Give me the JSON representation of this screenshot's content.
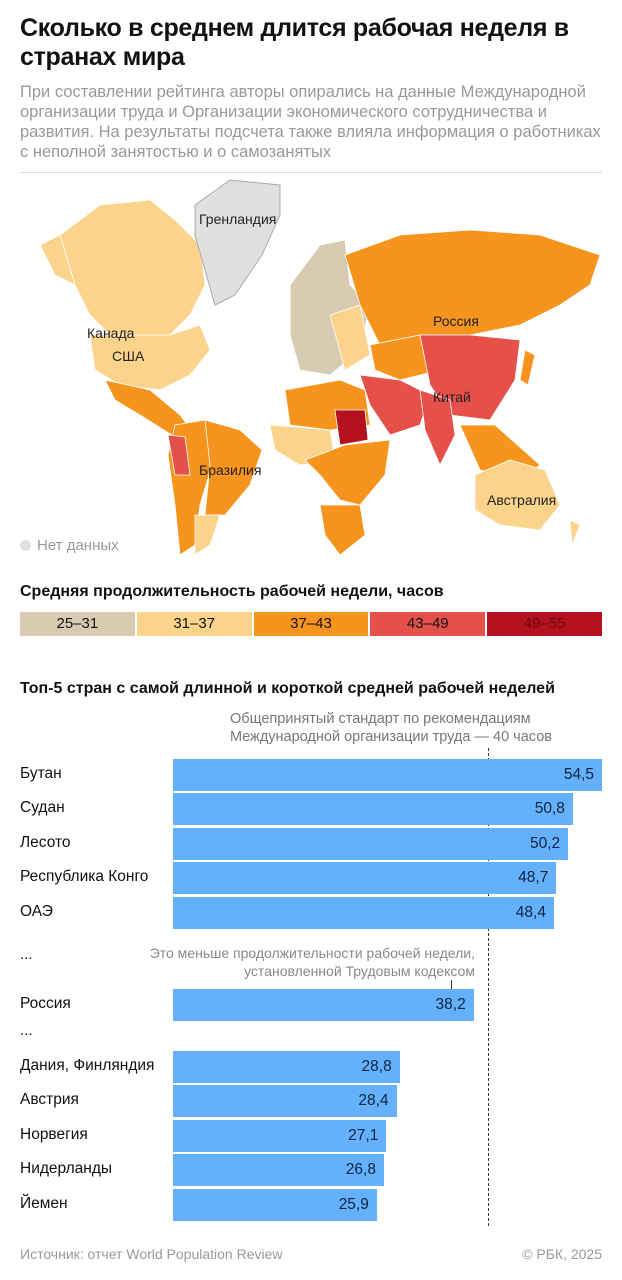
{
  "title": "Сколько в среднем длится рабочая неделя в странах мира",
  "subtitle": "При составлении рейтинга авторы опирались на данные Международной организации труда и Организации экономического сотрудничества и развития. На результаты подсчета также влияла информация о работниках с неполной занятостью и о самозанятых",
  "map": {
    "labels": {
      "greenland": "Гренландия",
      "canada": "Канада",
      "usa": "США",
      "russia": "Россия",
      "china": "Китай",
      "brazil": "Бразилия",
      "australia": "Австралия"
    },
    "no_data": "Нет данных",
    "no_data_color": "#e0e0e0"
  },
  "legend": {
    "title": "Средняя продолжительность рабочей недели, часов",
    "bins": [
      {
        "label": "25–31",
        "color": "#d8cbb1"
      },
      {
        "label": "31–37",
        "color": "#fbd38b"
      },
      {
        "label": "37–43",
        "color": "#f7941e"
      },
      {
        "label": "43–49",
        "color": "#e5504b"
      },
      {
        "label": "49–55",
        "color": "#b4101d"
      }
    ]
  },
  "chart_data": {
    "type": "bar",
    "orientation": "horizontal",
    "title": "Топ-5 стран с самой длинной и короткой средней рабочей неделей",
    "categories": [
      "Бутан",
      "Судан",
      "Лесото",
      "Республика Конго",
      "ОАЭ",
      "Россия",
      "Дания, Финляндия",
      "Австрия",
      "Норвегия",
      "Нидерланды",
      "Йемен"
    ],
    "values": [
      54.5,
      50.8,
      50.2,
      48.7,
      48.4,
      38.2,
      28.8,
      28.4,
      27.1,
      26.8,
      25.9
    ],
    "value_labels": [
      "54,5",
      "50,8",
      "50,2",
      "48,7",
      "48,4",
      "38,2",
      "28,8",
      "28,4",
      "27,1",
      "26,8",
      "25,9"
    ],
    "xlim": [
      0,
      54.5
    ],
    "bar_color": "#64b0fb",
    "gap_marker": "...",
    "reference_line": {
      "value": 40,
      "label": "Общепринятый стандарт по рекомендациям Международной организации труда — 40 часов"
    },
    "annotation": "Это меньше продолжительности рабочей недели, установленной Трудовым кодексом"
  },
  "footer": {
    "source": "Источник: отчет World Population Review",
    "copyright": "© РБК, 2025"
  }
}
